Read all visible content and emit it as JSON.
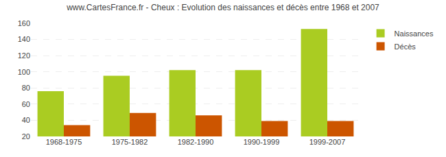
{
  "chart_data": {
    "type": "bar",
    "title": "www.CartesFrance.fr - Cheux : Evolution des naissances et décès entre 1968 et 2007",
    "categories": [
      "1968-1975",
      "1975-1982",
      "1982-1990",
      "1990-1999",
      "1999-2007"
    ],
    "series": [
      {
        "name": "Naissances",
        "color": "#aacc22",
        "values": [
          76,
          95,
          102,
          102,
          153
        ]
      },
      {
        "name": "Décès",
        "color": "#cc5500",
        "values": [
          34,
          49,
          46,
          39,
          39
        ]
      }
    ],
    "ylim": [
      20,
      160
    ],
    "yticks": [
      20,
      40,
      60,
      80,
      100,
      120,
      140,
      160
    ],
    "grid": true,
    "legend": "upper right"
  }
}
